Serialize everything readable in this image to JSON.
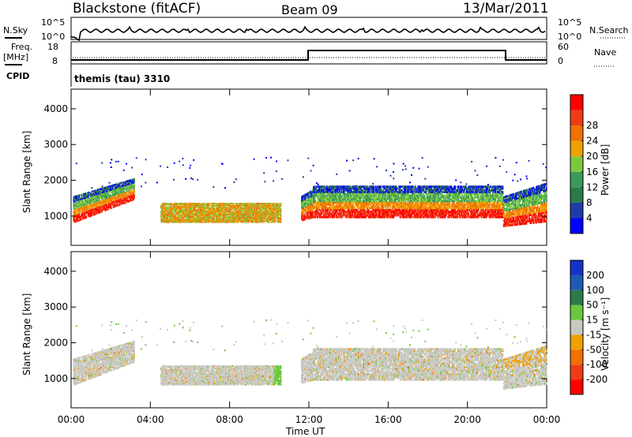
{
  "header": {
    "station": "Blackstone (fitACF)",
    "beam": "Beam 09",
    "date": "13/Mar/2011"
  },
  "top_panels": {
    "nsky_label": "N.Sky",
    "nsearch_label": "N.Search",
    "noise_ticks": [
      "10^5",
      "10^0"
    ],
    "freq_label_1": "Freq.",
    "freq_label_2": "[MHz]",
    "freq_ticks": [
      "18",
      "8"
    ],
    "nave_label": "Nave",
    "nave_ticks": [
      "60",
      "0"
    ],
    "cpid_label": "CPID",
    "cpid_value": "themis (tau) 3310"
  },
  "colors": {
    "power": [
      "#0000ff",
      "#1e3caa",
      "#2a7a4a",
      "#3a9a5a",
      "#7cc83c",
      "#f0a000",
      "#f07000",
      "#f03c14",
      "#ff0000"
    ],
    "velocity": [
      "#1432c8",
      "#1e5ab4",
      "#2a7a4a",
      "#6ac83c",
      "#c8c8c0",
      "#f0a000",
      "#f07000",
      "#f03c14",
      "#ff0000"
    ]
  },
  "chart_data": [
    {
      "type": "heatmap",
      "title": "Power",
      "ylabel": "Slant Range [km]",
      "xlabel": "Time UT",
      "x_ticks": [
        "00:00",
        "04:00",
        "08:00",
        "12:00",
        "16:00",
        "20:00",
        "00:00"
      ],
      "xlim": [
        0,
        24
      ],
      "y_ticks": [
        1000,
        2000,
        3000,
        4000
      ],
      "ylim": [
        180,
        4550
      ],
      "colorbar_label": "Power [dB]",
      "colorbar_ticks": [
        4,
        8,
        12,
        16,
        20,
        24,
        28
      ]
    },
    {
      "type": "heatmap",
      "title": "Velocity",
      "ylabel": "Slant Range [km]",
      "xlabel": "Time UT",
      "x_ticks": [
        "00:00",
        "04:00",
        "08:00",
        "12:00",
        "16:00",
        "20:00",
        "00:00"
      ],
      "xlim": [
        0,
        24
      ],
      "y_ticks": [
        1000,
        2000,
        3000,
        4000
      ],
      "ylim": [
        180,
        4550
      ],
      "colorbar_label": "Velocity [m s⁻¹]",
      "colorbar_ticks": [
        200,
        100,
        50,
        15,
        -15,
        -50,
        -100,
        -200
      ]
    }
  ]
}
